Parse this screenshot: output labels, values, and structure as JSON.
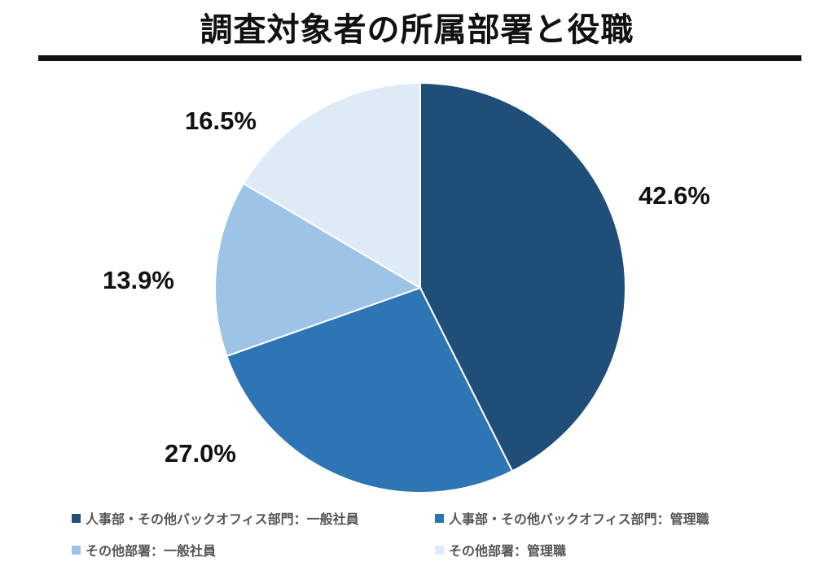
{
  "title": "調査対象者の所属部署と役職",
  "chart_data": {
    "type": "pie",
    "title": "調査対象者の所属部署と役職",
    "categories": [
      "人事部・その他バックオフィス部門：一般社員",
      "人事部・その他バックオフィス部門：管理職",
      "その他部署：一般社員",
      "その他部署：管理職"
    ],
    "values": [
      42.6,
      27.0,
      13.9,
      16.5
    ],
    "value_labels": [
      "42.6%",
      "27.0%",
      "13.9%",
      "16.5%"
    ],
    "colors": [
      "#1F4E79",
      "#2E75B6",
      "#9DC3E6",
      "#DEEBF7"
    ],
    "start_angle": "12 o'clock",
    "direction": "clockwise",
    "legend_position": "bottom"
  }
}
